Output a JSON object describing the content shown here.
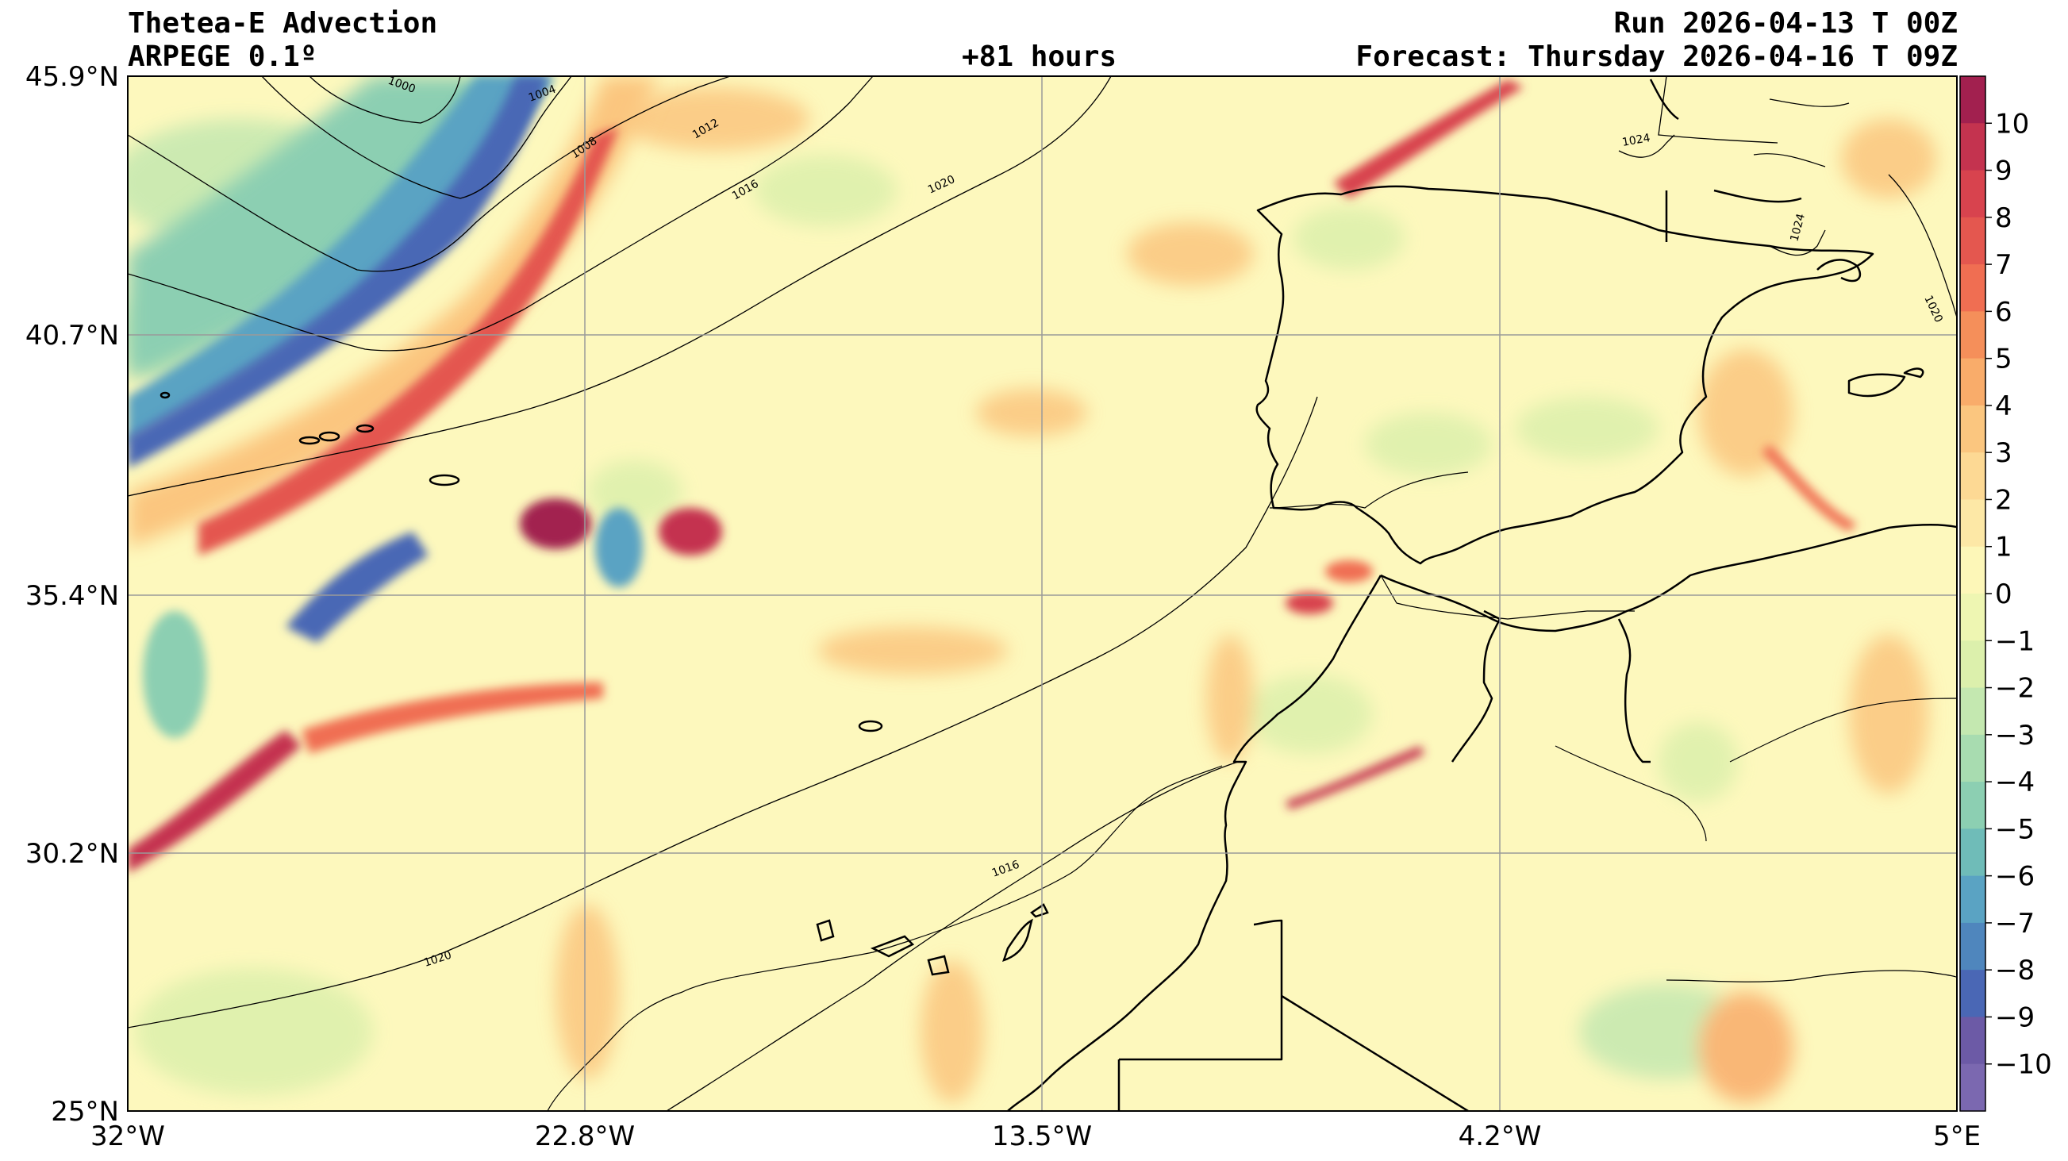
{
  "header": {
    "title": "Thetea-E Advection",
    "model": "ARPEGE 0.1º",
    "lead": "+81 hours",
    "run": "Run 2026-04-13 T 00Z",
    "forecast": "Forecast: Thursday 2026-04-16 T 09Z"
  },
  "map": {
    "lat_labels": [
      "45.9°N",
      "40.7°N",
      "35.4°N",
      "30.2°N",
      "25°N"
    ],
    "lon_labels": [
      "32°W",
      "22.8°W",
      "13.5°W",
      "4.2°W",
      "5°E"
    ],
    "isobar_labels": [
      "1000",
      "1004",
      "1008",
      "1012",
      "1016",
      "1020",
      "1024",
      "1024",
      "1020",
      "1016",
      "1020"
    ],
    "colors": {
      "neutral": "#fdf8bd",
      "warm_light": "#fdd291",
      "warm": "#f58f5a",
      "warm_strong": "#d8434e",
      "warm_max": "#a2204f",
      "cold_light": "#c4e8b0",
      "cold": "#5aa3c3",
      "cold_strong": "#4a67b5",
      "cold_max": "#6c5aa6"
    }
  },
  "colorbar": {
    "ticks": [
      "10",
      "9",
      "8",
      "7",
      "6",
      "5",
      "4",
      "3",
      "2",
      "1",
      "0",
      "−1",
      "−2",
      "−3",
      "−4",
      "−5",
      "−6",
      "−7",
      "−8",
      "−9",
      "−10"
    ],
    "colors": [
      "#a2204f",
      "#c4334f",
      "#d8434e",
      "#e4574f",
      "#f06e52",
      "#f58f5a",
      "#f9ac6a",
      "#fbc67f",
      "#fdd994",
      "#fde8a6",
      "#fdf7b8",
      "#eef6b2",
      "#dcf0ac",
      "#c4e8b0",
      "#a8dcb0",
      "#8ccfb2",
      "#6fbcb8",
      "#5aa3c3",
      "#4f86bd",
      "#4a67b5",
      "#6c5aa6",
      "#7b68b0"
    ]
  }
}
